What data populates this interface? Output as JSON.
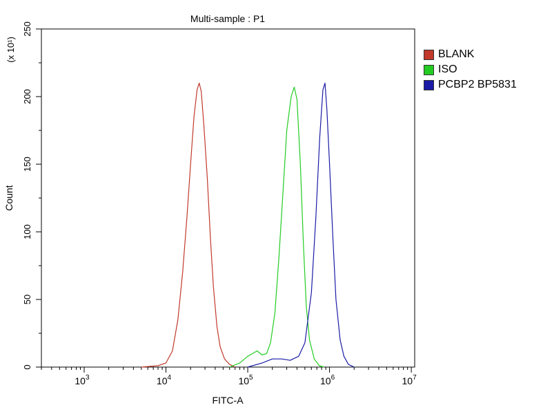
{
  "chart_data": {
    "type": "line",
    "title": "Multi-sample : P1",
    "xlabel": "FITC-A",
    "ylabel": "Count",
    "y_multiplier_label": "(x 10¹)",
    "x_scale": "log",
    "xlim": [
      300,
      11000000
    ],
    "ylim": [
      0,
      250
    ],
    "x_ticks": [
      {
        "value": 1000,
        "base": "10",
        "exp": "3"
      },
      {
        "value": 10000,
        "base": "10",
        "exp": "4"
      },
      {
        "value": 100000,
        "base": "10",
        "exp": "5"
      },
      {
        "value": 1000000,
        "base": "10",
        "exp": "6"
      },
      {
        "value": 10000000,
        "base": "10",
        "exp": "7"
      }
    ],
    "y_ticks": [
      0,
      50,
      100,
      150,
      200,
      250
    ],
    "grid": false,
    "legend_position": "outside-right-top",
    "series": [
      {
        "name": "BLANK",
        "color": "#c0392b",
        "points": [
          [
            5000,
            0
          ],
          [
            8000,
            1
          ],
          [
            10000,
            3
          ],
          [
            12000,
            12
          ],
          [
            14000,
            35
          ],
          [
            16000,
            70
          ],
          [
            18000,
            110
          ],
          [
            20000,
            150
          ],
          [
            22000,
            185
          ],
          [
            24000,
            205
          ],
          [
            25500,
            210
          ],
          [
            27000,
            204
          ],
          [
            29000,
            180
          ],
          [
            32000,
            140
          ],
          [
            35000,
            95
          ],
          [
            38000,
            60
          ],
          [
            42000,
            30
          ],
          [
            46000,
            15
          ],
          [
            52000,
            6
          ],
          [
            60000,
            2
          ],
          [
            70000,
            0
          ]
        ]
      },
      {
        "name": "ISO",
        "color": "#22cc22",
        "points": [
          [
            60000,
            0
          ],
          [
            80000,
            3
          ],
          [
            100000,
            8
          ],
          [
            115000,
            10
          ],
          [
            130000,
            12
          ],
          [
            150000,
            9
          ],
          [
            170000,
            10
          ],
          [
            190000,
            18
          ],
          [
            215000,
            40
          ],
          [
            240000,
            80
          ],
          [
            270000,
            130
          ],
          [
            300000,
            175
          ],
          [
            340000,
            200
          ],
          [
            370000,
            207
          ],
          [
            400000,
            198
          ],
          [
            440000,
            150
          ],
          [
            480000,
            90
          ],
          [
            520000,
            45
          ],
          [
            570000,
            20
          ],
          [
            650000,
            6
          ],
          [
            750000,
            1
          ],
          [
            850000,
            0
          ]
        ]
      },
      {
        "name": "PCBP2 BP5831",
        "color": "#1a1aa6",
        "points": [
          [
            100000,
            0
          ],
          [
            150000,
            3
          ],
          [
            200000,
            6
          ],
          [
            260000,
            6
          ],
          [
            330000,
            5
          ],
          [
            420000,
            8
          ],
          [
            500000,
            18
          ],
          [
            600000,
            55
          ],
          [
            680000,
            110
          ],
          [
            760000,
            170
          ],
          [
            830000,
            205
          ],
          [
            880000,
            210
          ],
          [
            930000,
            190
          ],
          [
            1000000,
            150
          ],
          [
            1100000,
            95
          ],
          [
            1200000,
            50
          ],
          [
            1350000,
            20
          ],
          [
            1500000,
            8
          ],
          [
            1700000,
            2
          ],
          [
            2000000,
            0
          ]
        ]
      }
    ]
  }
}
